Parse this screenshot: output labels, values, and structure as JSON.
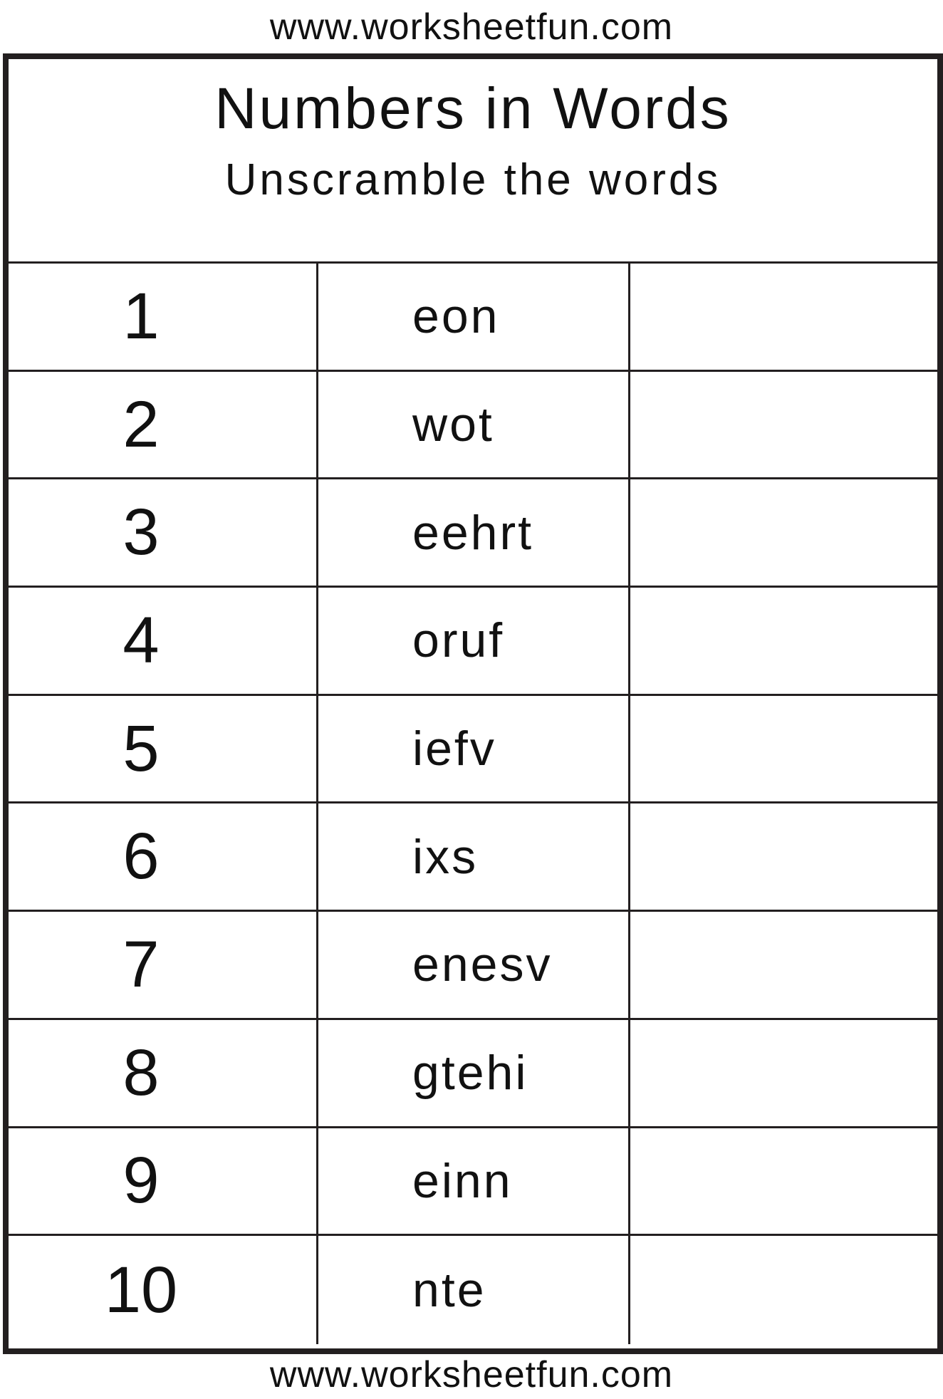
{
  "url_top": "www.worksheetfun.com",
  "url_bottom": "www.worksheetfun.com",
  "title": "Numbers in Words",
  "subtitle": "Unscramble the words",
  "rows": [
    {
      "number": "1",
      "scrambled": "eon",
      "answer": ""
    },
    {
      "number": "2",
      "scrambled": "wot",
      "answer": ""
    },
    {
      "number": "3",
      "scrambled": "eehrt",
      "answer": ""
    },
    {
      "number": "4",
      "scrambled": "oruf",
      "answer": ""
    },
    {
      "number": "5",
      "scrambled": "iefv",
      "answer": ""
    },
    {
      "number": "6",
      "scrambled": "ixs",
      "answer": ""
    },
    {
      "number": "7",
      "scrambled": "enesv",
      "answer": ""
    },
    {
      "number": "8",
      "scrambled": "gtehi",
      "answer": ""
    },
    {
      "number": "9",
      "scrambled": "einn",
      "answer": ""
    },
    {
      "number": "10",
      "scrambled": "nte",
      "answer": ""
    }
  ]
}
